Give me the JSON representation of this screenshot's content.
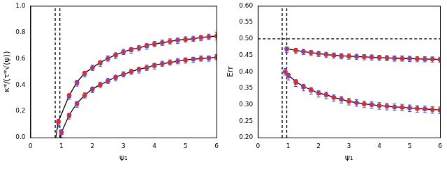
{
  "chart_data": [
    {
      "type": "scatter",
      "xlabel": "ψ₁",
      "ylabel": "κ*/(τ*√(ψ))",
      "grid": false,
      "xlim": [
        0,
        6
      ],
      "ylim": [
        0,
        1.0
      ],
      "xticks": [
        0,
        1,
        2,
        3,
        4,
        5,
        6
      ],
      "yticks": [
        {
          "value": 0,
          "label": "0.0"
        },
        0.2,
        0.4,
        0.6,
        0.8,
        {
          "value": 1.0,
          "label": "1.0"
        }
      ],
      "series": [
        {
          "type": "line",
          "line_style": "dashed",
          "color": "#000000",
          "x": [
            0.8,
            0.8
          ],
          "values": [
            0,
            1.0
          ]
        },
        {
          "type": "line",
          "line_style": "dashed",
          "color": "#000000",
          "x": [
            0.95,
            0.95
          ],
          "values": [
            0,
            1.0
          ]
        },
        {
          "type": "line",
          "line_style": "solid",
          "color": "#000000",
          "x": [
            0.82,
            0.9,
            1.25,
            1.5,
            1.75,
            2.0,
            2.25,
            2.5,
            2.75,
            3.0,
            3.25,
            3.5,
            3.75,
            4.0,
            4.25,
            4.5,
            4.75,
            5.0,
            5.25,
            5.5,
            5.75,
            6.0
          ],
          "values": [
            0,
            0.12,
            0.32,
            0.42,
            0.49,
            0.53,
            0.57,
            0.6,
            0.63,
            0.65,
            0.67,
            0.68,
            0.7,
            0.71,
            0.72,
            0.73,
            0.74,
            0.745,
            0.75,
            0.76,
            0.765,
            0.77
          ]
        },
        {
          "type": "line",
          "line_style": "solid",
          "color": "#000000",
          "x": [
            0.96,
            1.0,
            1.25,
            1.5,
            1.75,
            2.0,
            2.25,
            2.5,
            2.75,
            3.0,
            3.25,
            3.5,
            3.75,
            4.0,
            4.25,
            4.5,
            4.75,
            5.0,
            5.25,
            5.5,
            5.75,
            6.0
          ],
          "values": [
            0,
            0.04,
            0.17,
            0.26,
            0.32,
            0.37,
            0.4,
            0.43,
            0.46,
            0.48,
            0.5,
            0.52,
            0.53,
            0.55,
            0.56,
            0.57,
            0.58,
            0.59,
            0.595,
            0.6,
            0.605,
            0.61
          ]
        },
        {
          "type": "scatter",
          "marker": "circle",
          "color": "#e03030",
          "x": [
            0.9,
            1.25,
            1.5,
            1.75,
            2.0,
            2.25,
            2.5,
            2.75,
            3.0,
            3.25,
            3.5,
            3.75,
            4.0,
            4.25,
            4.5,
            4.75,
            5.0,
            5.25,
            5.5,
            5.75,
            6.0
          ],
          "values": [
            0.12,
            0.32,
            0.42,
            0.49,
            0.53,
            0.57,
            0.6,
            0.63,
            0.65,
            0.67,
            0.68,
            0.7,
            0.71,
            0.72,
            0.73,
            0.74,
            0.745,
            0.75,
            0.76,
            0.765,
            0.77
          ]
        },
        {
          "type": "scatter",
          "marker": "triangle",
          "color": "#4a4ae0",
          "x": [
            0.9,
            1.25,
            1.5,
            1.75,
            2.0,
            2.25,
            2.5,
            2.75,
            3.0,
            3.25,
            3.5,
            3.75,
            4.0,
            4.25,
            4.5,
            4.75,
            5.0,
            5.25,
            5.5,
            5.75,
            6.0
          ],
          "values": [
            0.11,
            0.31,
            0.41,
            0.48,
            0.53,
            0.56,
            0.6,
            0.62,
            0.65,
            0.66,
            0.68,
            0.69,
            0.71,
            0.72,
            0.73,
            0.735,
            0.745,
            0.75,
            0.755,
            0.765,
            0.77
          ],
          "errors": [
            0.03,
            0.02,
            0.02,
            0.02,
            0.02,
            0.02,
            0.02,
            0.02,
            0.02,
            0.02,
            0.02,
            0.02,
            0.02,
            0.02,
            0.02,
            0.02,
            0.02,
            0.02,
            0.02,
            0.02,
            0.03
          ]
        },
        {
          "type": "scatter",
          "marker": "circle",
          "color": "#e03030",
          "x": [
            1.0,
            1.25,
            1.5,
            1.75,
            2.0,
            2.25,
            2.5,
            2.75,
            3.0,
            3.25,
            3.5,
            3.75,
            4.0,
            4.25,
            4.5,
            4.75,
            5.0,
            5.25,
            5.5,
            5.75,
            6.0
          ],
          "values": [
            0.04,
            0.17,
            0.26,
            0.32,
            0.37,
            0.4,
            0.43,
            0.46,
            0.48,
            0.5,
            0.52,
            0.53,
            0.55,
            0.56,
            0.57,
            0.58,
            0.59,
            0.595,
            0.6,
            0.605,
            0.61
          ]
        },
        {
          "type": "scatter",
          "marker": "triangle",
          "color": "#4a4ae0",
          "x": [
            1.0,
            1.25,
            1.5,
            1.75,
            2.0,
            2.25,
            2.5,
            2.75,
            3.0,
            3.25,
            3.5,
            3.75,
            4.0,
            4.25,
            4.5,
            4.75,
            5.0,
            5.25,
            5.5,
            5.75,
            6.0
          ],
          "values": [
            0.03,
            0.16,
            0.25,
            0.32,
            0.36,
            0.4,
            0.43,
            0.45,
            0.48,
            0.5,
            0.51,
            0.53,
            0.54,
            0.56,
            0.57,
            0.58,
            0.585,
            0.59,
            0.6,
            0.6,
            0.61
          ],
          "errors": [
            0.03,
            0.02,
            0.02,
            0.02,
            0.02,
            0.02,
            0.02,
            0.02,
            0.02,
            0.02,
            0.02,
            0.02,
            0.02,
            0.02,
            0.02,
            0.02,
            0.02,
            0.02,
            0.02,
            0.02,
            0.02
          ]
        }
      ]
    },
    {
      "type": "scatter",
      "xlabel": "ψ₁",
      "ylabel": "Err",
      "grid": false,
      "xlim": [
        0,
        6
      ],
      "ylim": [
        0.2,
        0.6
      ],
      "xticks": [
        0,
        1,
        2,
        3,
        4,
        5,
        6
      ],
      "yticks": [
        {
          "value": 0.2,
          "label": "0.20"
        },
        0.25,
        {
          "value": 0.3,
          "label": "0.30"
        },
        0.35,
        {
          "value": 0.4,
          "label": "0.40"
        },
        0.45,
        {
          "value": 0.5,
          "label": "0.50"
        },
        0.55,
        {
          "value": 0.6,
          "label": "0.60"
        }
      ],
      "series": [
        {
          "type": "line",
          "line_style": "dashed",
          "color": "#000000",
          "x": [
            0.8,
            0.8
          ],
          "values": [
            0.2,
            0.6
          ]
        },
        {
          "type": "line",
          "line_style": "dashed",
          "color": "#000000",
          "x": [
            0.95,
            0.95
          ],
          "values": [
            0.2,
            0.6
          ]
        },
        {
          "type": "line",
          "line_style": "dashed",
          "color": "#000000",
          "x": [
            0,
            6
          ],
          "values": [
            0.5,
            0.5
          ]
        },
        {
          "type": "line",
          "line_style": "solid",
          "color": "#000000",
          "x": [
            0.95,
            1.25,
            1.5,
            1.75,
            2.0,
            2.25,
            2.5,
            2.75,
            3.0,
            3.25,
            3.5,
            3.75,
            4.0,
            4.25,
            4.5,
            4.75,
            5.0,
            5.25,
            5.5,
            5.75,
            6.0
          ],
          "values": [
            0.47,
            0.465,
            0.461,
            0.458,
            0.455,
            0.452,
            0.45,
            0.448,
            0.447,
            0.446,
            0.445,
            0.444,
            0.443,
            0.442,
            0.441,
            0.44,
            0.44,
            0.439,
            0.438,
            0.438,
            0.437
          ]
        },
        {
          "type": "line",
          "line_style": "solid",
          "color": "#000000",
          "x": [
            0.9,
            1.0,
            1.25,
            1.5,
            1.75,
            2.0,
            2.25,
            2.5,
            2.75,
            3.0,
            3.25,
            3.5,
            3.75,
            4.0,
            4.25,
            4.5,
            4.75,
            5.0,
            5.25,
            5.5,
            5.75,
            6.0
          ],
          "values": [
            0.4,
            0.39,
            0.37,
            0.355,
            0.345,
            0.335,
            0.33,
            0.322,
            0.316,
            0.31,
            0.306,
            0.302,
            0.3,
            0.297,
            0.295,
            0.293,
            0.292,
            0.29,
            0.288,
            0.287,
            0.285,
            0.284
          ]
        },
        {
          "type": "scatter",
          "marker": "circle",
          "color": "#e03030",
          "x": [
            0.95,
            1.25,
            1.5,
            1.75,
            2.0,
            2.25,
            2.5,
            2.75,
            3.0,
            3.25,
            3.5,
            3.75,
            4.0,
            4.25,
            4.5,
            4.75,
            5.0,
            5.25,
            5.5,
            5.75,
            6.0
          ],
          "values": [
            0.47,
            0.465,
            0.461,
            0.458,
            0.455,
            0.452,
            0.45,
            0.448,
            0.447,
            0.446,
            0.445,
            0.444,
            0.443,
            0.442,
            0.441,
            0.44,
            0.44,
            0.439,
            0.438,
            0.438,
            0.437
          ]
        },
        {
          "type": "scatter",
          "marker": "triangle",
          "color": "#4a4ae0",
          "x": [
            0.95,
            1.25,
            1.5,
            1.75,
            2.0,
            2.25,
            2.5,
            2.75,
            3.0,
            3.25,
            3.5,
            3.75,
            4.0,
            4.25,
            4.5,
            4.75,
            5.0,
            5.25,
            5.5,
            5.75,
            6.0
          ],
          "values": [
            0.466,
            0.463,
            0.46,
            0.457,
            0.454,
            0.451,
            0.449,
            0.447,
            0.446,
            0.445,
            0.444,
            0.443,
            0.442,
            0.441,
            0.44,
            0.44,
            0.439,
            0.438,
            0.438,
            0.437,
            0.436
          ],
          "errors": [
            0.008,
            0.008,
            0.008,
            0.008,
            0.008,
            0.008,
            0.008,
            0.008,
            0.008,
            0.008,
            0.008,
            0.008,
            0.008,
            0.008,
            0.008,
            0.008,
            0.008,
            0.008,
            0.008,
            0.008,
            0.008
          ]
        },
        {
          "type": "scatter",
          "marker": "circle",
          "color": "#e03030",
          "x": [
            0.9,
            1.0,
            1.25,
            1.5,
            1.75,
            2.0,
            2.25,
            2.5,
            2.75,
            3.0,
            3.25,
            3.5,
            3.75,
            4.0,
            4.25,
            4.5,
            4.75,
            5.0,
            5.25,
            5.5,
            5.75,
            6.0
          ],
          "values": [
            0.4,
            0.39,
            0.37,
            0.355,
            0.345,
            0.335,
            0.33,
            0.322,
            0.316,
            0.31,
            0.306,
            0.302,
            0.3,
            0.297,
            0.295,
            0.293,
            0.292,
            0.29,
            0.288,
            0.287,
            0.285,
            0.284
          ]
        },
        {
          "type": "scatter",
          "marker": "triangle",
          "color": "#4a4ae0",
          "x": [
            0.9,
            1.0,
            1.25,
            1.5,
            1.75,
            2.0,
            2.25,
            2.5,
            2.75,
            3.0,
            3.25,
            3.5,
            3.75,
            4.0,
            4.25,
            4.5,
            4.75,
            5.0,
            5.25,
            5.5,
            5.75,
            6.0
          ],
          "values": [
            0.4,
            0.385,
            0.365,
            0.352,
            0.342,
            0.333,
            0.328,
            0.32,
            0.315,
            0.309,
            0.305,
            0.301,
            0.299,
            0.296,
            0.294,
            0.292,
            0.291,
            0.289,
            0.287,
            0.286,
            0.284,
            0.283
          ],
          "errors": [
            0.01,
            0.01,
            0.01,
            0.01,
            0.01,
            0.01,
            0.01,
            0.01,
            0.01,
            0.01,
            0.01,
            0.01,
            0.01,
            0.01,
            0.01,
            0.01,
            0.01,
            0.01,
            0.01,
            0.01,
            0.01,
            0.01
          ]
        }
      ]
    }
  ]
}
